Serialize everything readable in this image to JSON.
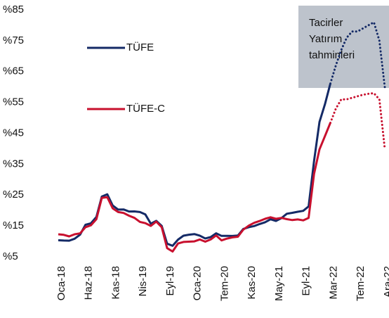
{
  "chart_data": {
    "type": "line",
    "categories": [
      "Oca-18",
      null,
      null,
      null,
      null,
      "Haz-18",
      null,
      null,
      null,
      null,
      "Kas-18",
      null,
      null,
      null,
      null,
      "Nis-19",
      null,
      null,
      null,
      null,
      "Eyl-19",
      null,
      null,
      null,
      null,
      "Oca-20",
      null,
      null,
      null,
      null,
      "Tem-20",
      null,
      null,
      null,
      null,
      "Kas-20",
      null,
      null,
      null,
      null,
      "May-21",
      null,
      null,
      null,
      null,
      "Eyl-21",
      null,
      null,
      null,
      null,
      "Mar-22",
      null,
      null,
      null,
      null,
      "Tem-22",
      null,
      null,
      null,
      null,
      "Ara-22"
    ],
    "series": [
      {
        "name": "TÜFE",
        "color": "#142a66",
        "values": [
          10.35,
          10.26,
          10.23,
          10.85,
          12.15,
          15.39,
          15.85,
          17.9,
          24.52,
          25.24,
          21.62,
          20.3,
          20.35,
          19.67,
          19.71,
          19.5,
          18.71,
          15.72,
          16.65,
          15.01,
          9.26,
          8.55,
          10.56,
          11.84,
          12.15,
          12.37,
          11.86,
          10.94,
          11.39,
          12.62,
          11.76,
          11.77,
          11.75,
          11.89,
          14.03,
          14.6,
          14.97,
          15.61,
          16.19,
          17.14,
          16.59,
          17.53,
          18.95,
          19.25,
          19.58,
          19.89,
          21.31,
          36.08,
          48.69,
          54.44,
          61.14,
          null,
          null,
          null,
          null,
          null,
          null,
          null,
          null,
          null,
          null
        ],
        "forecast_values": [
          null,
          null,
          null,
          null,
          null,
          null,
          null,
          null,
          null,
          null,
          null,
          null,
          null,
          null,
          null,
          null,
          null,
          null,
          null,
          null,
          null,
          null,
          null,
          null,
          null,
          null,
          null,
          null,
          null,
          null,
          null,
          null,
          null,
          null,
          null,
          null,
          null,
          null,
          null,
          null,
          null,
          null,
          null,
          null,
          null,
          null,
          null,
          null,
          null,
          null,
          61.14,
          67,
          72,
          76,
          78,
          78,
          79,
          80,
          81,
          75,
          60
        ]
      },
      {
        "name": "TÜFE-C",
        "color": "#c8102e",
        "values": [
          12.3,
          12.1,
          11.6,
          12.3,
          12.6,
          14.6,
          15.2,
          17.2,
          24.1,
          24.3,
          20.7,
          19.5,
          19.2,
          18.3,
          17.6,
          16.3,
          15.9,
          15.0,
          16.4,
          14.6,
          7.8,
          6.7,
          9.3,
          9.8,
          9.9,
          10.0,
          10.6,
          9.9,
          10.6,
          11.9,
          10.3,
          10.9,
          11.3,
          11.5,
          13.8,
          15.1,
          16.0,
          16.6,
          17.3,
          17.8,
          17.3,
          17.6,
          17.2,
          16.9,
          17.1,
          16.8,
          17.6,
          31.9,
          39.8,
          44.1,
          48.4,
          null,
          null,
          null,
          null,
          null,
          null,
          null,
          null,
          null,
          null
        ],
        "forecast_values": [
          null,
          null,
          null,
          null,
          null,
          null,
          null,
          null,
          null,
          null,
          null,
          null,
          null,
          null,
          null,
          null,
          null,
          null,
          null,
          null,
          null,
          null,
          null,
          null,
          null,
          null,
          null,
          null,
          null,
          null,
          null,
          null,
          null,
          null,
          null,
          null,
          null,
          null,
          null,
          null,
          null,
          null,
          null,
          null,
          null,
          null,
          null,
          null,
          null,
          null,
          48.4,
          53,
          56,
          56,
          56.5,
          57,
          57.5,
          57.8,
          58,
          56,
          40
        ]
      }
    ],
    "ylim": [
      5,
      85
    ],
    "yticks": [
      {
        "value": 5,
        "label": "%5"
      },
      {
        "value": 15,
        "label": "%15"
      },
      {
        "value": 25,
        "label": "%25"
      },
      {
        "value": 35,
        "label": "%35"
      },
      {
        "value": 45,
        "label": "%45"
      },
      {
        "value": 55,
        "label": "%55"
      },
      {
        "value": 65,
        "label": "%65"
      },
      {
        "value": 75,
        "label": "%75"
      },
      {
        "value": 85,
        "label": "%85"
      }
    ],
    "annotation": [
      "Tacirler",
      "Yatırım",
      "tahminleri"
    ],
    "legend": "left",
    "grid": false
  }
}
